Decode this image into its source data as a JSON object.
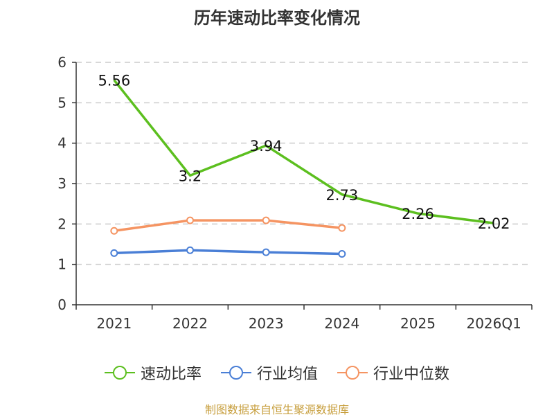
{
  "chart_data": {
    "type": "line",
    "title": "历年速动比率变化情况",
    "categories": [
      "2021",
      "2022",
      "2023",
      "2024",
      "2025",
      "2026Q1"
    ],
    "ylim": [
      0,
      6
    ],
    "yticks": [
      0,
      1,
      2,
      3,
      4,
      5,
      6
    ],
    "grid": true,
    "legend_position": "bottom",
    "series": [
      {
        "name": "速动比率",
        "color": "#5cbf1f",
        "values": [
          5.56,
          3.2,
          3.94,
          2.73,
          2.26,
          2.02
        ],
        "labels": [
          "5.56",
          "3.2",
          "3.94",
          "2.73",
          "2.26",
          "2.02"
        ],
        "markers": false
      },
      {
        "name": "行业均值",
        "color": "#4a7fd6",
        "values": [
          1.28,
          1.35,
          1.3,
          1.26,
          null,
          null
        ],
        "markers": true
      },
      {
        "name": "行业中位数",
        "color": "#f59462",
        "values": [
          1.83,
          2.09,
          2.09,
          1.9,
          null,
          null
        ],
        "markers": true
      }
    ]
  },
  "source_text": "制图数据来自恒生聚源数据库"
}
